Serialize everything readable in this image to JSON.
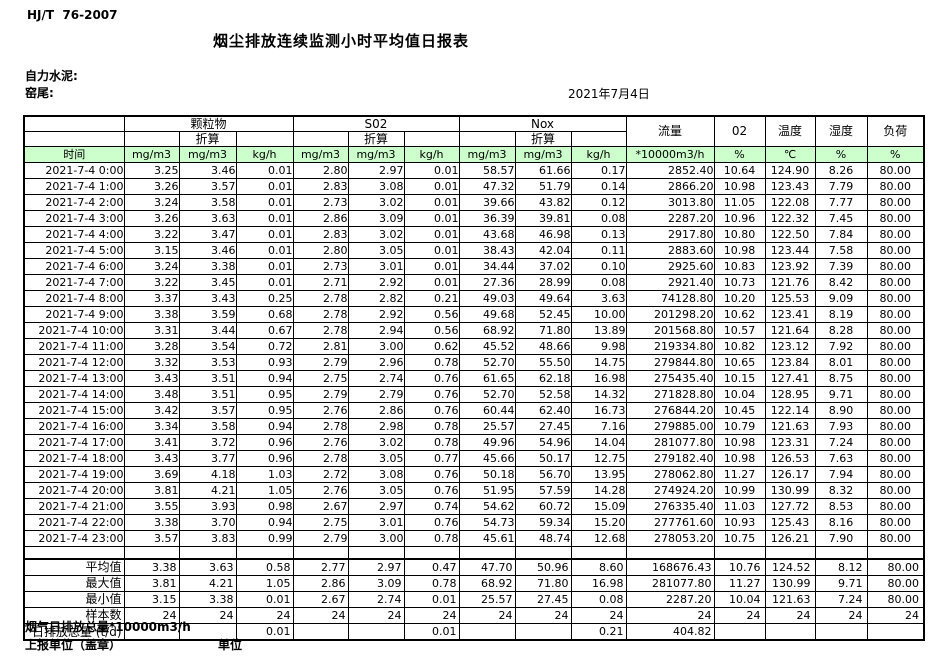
{
  "header": {
    "doc_code": "HJ/T  76-2007",
    "title": "烟尘排放连续监测小时平均值日报表",
    "company": "自力水泥:",
    "location": "窑尾:",
    "date": "2021年7月4日"
  },
  "table": {
    "groups": {
      "pm": "颗粒物",
      "so2": "S02",
      "nox": "Nox",
      "flow": "流量",
      "o2": "02",
      "temp": "温度",
      "humidity": "湿度",
      "load": "负荷"
    },
    "converted_label": "折算",
    "units": [
      "时间",
      "mg/m3",
      "mg/m3",
      "kg/h",
      "mg/m3",
      "mg/m3",
      "kg/h",
      "mg/m3",
      "mg/m3",
      "kg/h",
      "*10000m3/h",
      "%",
      "℃",
      "%",
      "%"
    ],
    "rows": [
      [
        "2021-7-4 0:00",
        "3.25",
        "3.46",
        "0.01",
        "2.80",
        "2.97",
        "0.01",
        "58.57",
        "61.66",
        "0.17",
        "2852.40",
        "10.64",
        "124.90",
        "8.26",
        "80.00"
      ],
      [
        "2021-7-4 1:00",
        "3.26",
        "3.57",
        "0.01",
        "2.83",
        "3.08",
        "0.01",
        "47.32",
        "51.79",
        "0.14",
        "2866.20",
        "10.98",
        "123.43",
        "7.79",
        "80.00"
      ],
      [
        "2021-7-4 2:00",
        "3.24",
        "3.58",
        "0.01",
        "2.73",
        "3.02",
        "0.01",
        "39.66",
        "43.82",
        "0.12",
        "3013.80",
        "11.05",
        "122.08",
        "7.77",
        "80.00"
      ],
      [
        "2021-7-4 3:00",
        "3.26",
        "3.63",
        "0.01",
        "2.86",
        "3.09",
        "0.01",
        "36.39",
        "39.81",
        "0.08",
        "2287.20",
        "10.96",
        "122.32",
        "7.45",
        "80.00"
      ],
      [
        "2021-7-4 4:00",
        "3.22",
        "3.47",
        "0.01",
        "2.83",
        "3.02",
        "0.01",
        "43.68",
        "46.98",
        "0.13",
        "2917.80",
        "10.80",
        "122.50",
        "7.84",
        "80.00"
      ],
      [
        "2021-7-4 5:00",
        "3.15",
        "3.46",
        "0.01",
        "2.80",
        "3.05",
        "0.01",
        "38.43",
        "42.04",
        "0.11",
        "2883.60",
        "10.98",
        "123.44",
        "7.58",
        "80.00"
      ],
      [
        "2021-7-4 6:00",
        "3.24",
        "3.38",
        "0.01",
        "2.73",
        "3.01",
        "0.01",
        "34.44",
        "37.02",
        "0.10",
        "2925.60",
        "10.83",
        "123.92",
        "7.39",
        "80.00"
      ],
      [
        "2021-7-4 7:00",
        "3.22",
        "3.45",
        "0.01",
        "2.71",
        "2.92",
        "0.01",
        "27.36",
        "28.99",
        "0.08",
        "2921.40",
        "10.73",
        "121.76",
        "8.42",
        "80.00"
      ],
      [
        "2021-7-4 8:00",
        "3.37",
        "3.43",
        "0.25",
        "2.78",
        "2.82",
        "0.21",
        "49.03",
        "49.64",
        "3.63",
        "74128.80",
        "10.20",
        "125.53",
        "9.09",
        "80.00"
      ],
      [
        "2021-7-4 9:00",
        "3.38",
        "3.59",
        "0.68",
        "2.78",
        "2.92",
        "0.56",
        "49.68",
        "52.45",
        "10.00",
        "201298.20",
        "10.62",
        "123.41",
        "8.19",
        "80.00"
      ],
      [
        "2021-7-4 10:00",
        "3.31",
        "3.44",
        "0.67",
        "2.78",
        "2.94",
        "0.56",
        "68.92",
        "71.80",
        "13.89",
        "201568.80",
        "10.57",
        "121.64",
        "8.28",
        "80.00"
      ],
      [
        "2021-7-4 11:00",
        "3.28",
        "3.54",
        "0.72",
        "2.81",
        "3.00",
        "0.62",
        "45.52",
        "48.66",
        "9.98",
        "219334.80",
        "10.82",
        "123.12",
        "7.92",
        "80.00"
      ],
      [
        "2021-7-4 12:00",
        "3.32",
        "3.53",
        "0.93",
        "2.79",
        "2.96",
        "0.78",
        "52.70",
        "55.50",
        "14.75",
        "279844.80",
        "10.65",
        "123.84",
        "8.01",
        "80.00"
      ],
      [
        "2021-7-4 13:00",
        "3.43",
        "3.51",
        "0.94",
        "2.75",
        "2.74",
        "0.76",
        "61.65",
        "62.18",
        "16.98",
        "275435.40",
        "10.15",
        "127.41",
        "8.75",
        "80.00"
      ],
      [
        "2021-7-4 14:00",
        "3.48",
        "3.51",
        "0.95",
        "2.79",
        "2.79",
        "0.76",
        "52.70",
        "52.58",
        "14.32",
        "271828.80",
        "10.04",
        "128.95",
        "9.71",
        "80.00"
      ],
      [
        "2021-7-4 15:00",
        "3.42",
        "3.57",
        "0.95",
        "2.76",
        "2.86",
        "0.76",
        "60.44",
        "62.40",
        "16.73",
        "276844.20",
        "10.45",
        "122.14",
        "8.90",
        "80.00"
      ],
      [
        "2021-7-4 16:00",
        "3.34",
        "3.58",
        "0.94",
        "2.78",
        "2.98",
        "0.78",
        "25.57",
        "27.45",
        "7.16",
        "279885.00",
        "10.79",
        "121.63",
        "7.93",
        "80.00"
      ],
      [
        "2021-7-4 17:00",
        "3.41",
        "3.72",
        "0.96",
        "2.76",
        "3.02",
        "0.78",
        "49.96",
        "54.96",
        "14.04",
        "281077.80",
        "10.98",
        "123.31",
        "7.24",
        "80.00"
      ],
      [
        "2021-7-4 18:00",
        "3.43",
        "3.77",
        "0.96",
        "2.78",
        "3.05",
        "0.77",
        "45.66",
        "50.17",
        "12.75",
        "279182.40",
        "10.98",
        "126.53",
        "7.63",
        "80.00"
      ],
      [
        "2021-7-4 19:00",
        "3.69",
        "4.18",
        "1.03",
        "2.72",
        "3.08",
        "0.76",
        "50.18",
        "56.70",
        "13.95",
        "278062.80",
        "11.27",
        "126.17",
        "7.94",
        "80.00"
      ],
      [
        "2021-7-4 20:00",
        "3.81",
        "4.21",
        "1.05",
        "2.76",
        "3.05",
        "0.76",
        "51.95",
        "57.59",
        "14.28",
        "274924.20",
        "10.99",
        "130.99",
        "8.32",
        "80.00"
      ],
      [
        "2021-7-4 21:00",
        "3.55",
        "3.93",
        "0.98",
        "2.67",
        "2.97",
        "0.74",
        "54.62",
        "60.72",
        "15.09",
        "276335.40",
        "11.03",
        "127.72",
        "8.53",
        "80.00"
      ],
      [
        "2021-7-4 22:00",
        "3.38",
        "3.70",
        "0.94",
        "2.75",
        "3.01",
        "0.76",
        "54.73",
        "59.34",
        "15.20",
        "277761.60",
        "10.93",
        "125.43",
        "8.16",
        "80.00"
      ],
      [
        "2021-7-4 23:00",
        "3.57",
        "3.83",
        "0.99",
        "2.79",
        "3.00",
        "0.78",
        "45.61",
        "48.74",
        "12.68",
        "278053.20",
        "10.75",
        "126.21",
        "7.90",
        "80.00"
      ]
    ],
    "summary": [
      [
        "平均值",
        "3.38",
        "3.63",
        "0.58",
        "2.77",
        "2.97",
        "0.47",
        "47.70",
        "50.96",
        "8.60",
        "168676.43",
        "10.76",
        "124.52",
        "8.12",
        "80.00"
      ],
      [
        "最大值",
        "3.81",
        "4.21",
        "1.05",
        "2.86",
        "3.09",
        "0.78",
        "68.92",
        "71.80",
        "16.98",
        "281077.80",
        "11.27",
        "130.99",
        "9.71",
        "80.00"
      ],
      [
        "最小值",
        "3.15",
        "3.38",
        "0.01",
        "2.67",
        "2.74",
        "0.01",
        "25.57",
        "27.45",
        "0.08",
        "2287.20",
        "10.04",
        "121.63",
        "7.24",
        "80.00"
      ],
      [
        "样本数",
        "24",
        "24",
        "24",
        "24",
        "24",
        "24",
        "24",
        "24",
        "24",
        "24",
        "24",
        "24",
        "24",
        "24"
      ],
      [
        "日排放总量 (t/d)",
        "",
        "",
        "0.01",
        "",
        "",
        "0.01",
        "",
        "",
        "0.21",
        "404.82",
        "",
        "",
        "",
        ""
      ]
    ]
  },
  "footer": {
    "flue_total": "烟气日排放总量*10000m3/h",
    "report_unit": "上报单位（盖章）",
    "unit": "单位"
  },
  "colors": {
    "header_green": "#ccffcc",
    "border": "#000000"
  }
}
